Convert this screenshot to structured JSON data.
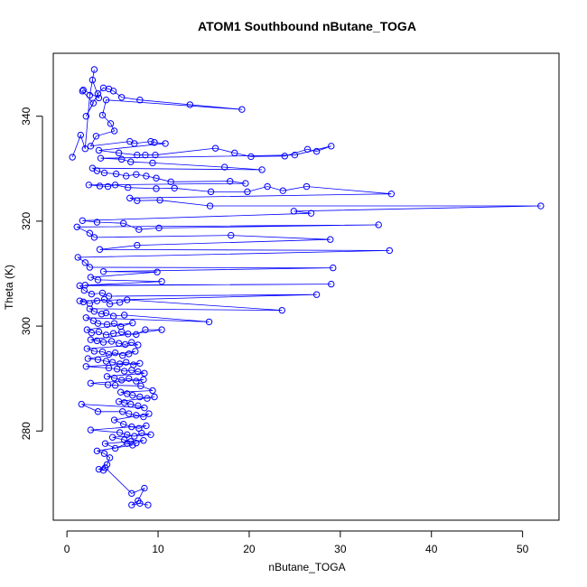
{
  "chart_data": {
    "type": "line",
    "title": "ATOM1 Southbound nButane_TOGA",
    "xlabel": "nButane_TOGA",
    "ylabel": "Theta (K)",
    "xlim": [
      -1.5,
      54.0
    ],
    "ylim": [
      263.0,
      352.0
    ],
    "x_ticks": [
      0,
      10,
      20,
      30,
      40,
      50
    ],
    "y_ticks": [
      280,
      300,
      320,
      340
    ],
    "grid": false,
    "legend": "none",
    "series": [
      {
        "color": "#0000ff",
        "marker": "open-circle",
        "points": [
          [
            0.6,
            332.2
          ],
          [
            1.5,
            336.4
          ],
          [
            2.0,
            333.8
          ],
          [
            2.5,
            344.0
          ],
          [
            3.0,
            348.9
          ],
          [
            2.8,
            346.9
          ],
          [
            3.5,
            343.5
          ],
          [
            1.8,
            345.0
          ],
          [
            1.7,
            344.8
          ],
          [
            2.9,
            342.5
          ],
          [
            2.1,
            340.0
          ],
          [
            3.4,
            344.3
          ],
          [
            4.0,
            345.4
          ],
          [
            4.6,
            345.2
          ],
          [
            5.1,
            344.8
          ],
          [
            6.0,
            343.6
          ],
          [
            8.0,
            343.1
          ],
          [
            13.5,
            342.2
          ],
          [
            19.2,
            341.3
          ],
          [
            4.3,
            343.1
          ],
          [
            3.9,
            340.2
          ],
          [
            4.8,
            338.6
          ],
          [
            5.2,
            337.2
          ],
          [
            3.2,
            336.2
          ],
          [
            2.6,
            334.3
          ],
          [
            6.9,
            335.2
          ],
          [
            7.4,
            334.8
          ],
          [
            9.2,
            335.2
          ],
          [
            9.6,
            335.0
          ],
          [
            10.8,
            334.8
          ],
          [
            3.5,
            333.5
          ],
          [
            5.7,
            333.0
          ],
          [
            7.7,
            332.6
          ],
          [
            8.6,
            332.6
          ],
          [
            9.7,
            332.6
          ],
          [
            16.3,
            333.9
          ],
          [
            18.4,
            333.0
          ],
          [
            20.2,
            332.3
          ],
          [
            23.9,
            332.4
          ],
          [
            26.4,
            333.7
          ],
          [
            27.4,
            333.3
          ],
          [
            29.0,
            334.3
          ],
          [
            25.0,
            332.6
          ],
          [
            3.7,
            332.0
          ],
          [
            6.0,
            331.8
          ],
          [
            7.0,
            331.3
          ],
          [
            9.4,
            331.1
          ],
          [
            17.3,
            330.3
          ],
          [
            21.4,
            329.8
          ],
          [
            2.8,
            330.1
          ],
          [
            3.3,
            329.6
          ],
          [
            4.1,
            329.2
          ],
          [
            5.4,
            329.0
          ],
          [
            6.5,
            328.6
          ],
          [
            7.6,
            328.9
          ],
          [
            8.7,
            328.6
          ],
          [
            9.8,
            328.2
          ],
          [
            11.4,
            327.5
          ],
          [
            17.9,
            327.6
          ],
          [
            19.6,
            327.2
          ],
          [
            2.4,
            326.9
          ],
          [
            3.6,
            326.7
          ],
          [
            4.5,
            326.6
          ],
          [
            5.3,
            326.9
          ],
          [
            6.7,
            326.4
          ],
          [
            9.8,
            326.2
          ],
          [
            11.8,
            326.3
          ],
          [
            15.8,
            325.6
          ],
          [
            19.8,
            325.6
          ],
          [
            22.0,
            326.6
          ],
          [
            23.7,
            325.8
          ],
          [
            26.3,
            326.6
          ],
          [
            35.6,
            325.2
          ],
          [
            6.9,
            324.4
          ],
          [
            7.7,
            323.9
          ],
          [
            10.2,
            324.0
          ],
          [
            15.7,
            322.9
          ],
          [
            52.0,
            322.9
          ],
          [
            24.9,
            321.9
          ],
          [
            26.8,
            321.5
          ],
          [
            1.7,
            320.1
          ],
          [
            3.3,
            319.8
          ],
          [
            6.2,
            319.6
          ],
          [
            7.9,
            318.4
          ],
          [
            10.1,
            318.7
          ],
          [
            34.2,
            319.3
          ],
          [
            1.1,
            318.9
          ],
          [
            2.5,
            317.7
          ],
          [
            3.0,
            316.9
          ],
          [
            18.0,
            317.3
          ],
          [
            28.9,
            316.5
          ],
          [
            7.7,
            315.4
          ],
          [
            3.6,
            314.6
          ],
          [
            35.4,
            314.4
          ],
          [
            1.2,
            313.1
          ],
          [
            2.0,
            312.1
          ],
          [
            2.5,
            311.2
          ],
          [
            29.2,
            311.1
          ],
          [
            4.0,
            310.4
          ],
          [
            9.9,
            310.3
          ],
          [
            2.6,
            309.3
          ],
          [
            3.4,
            308.8
          ],
          [
            10.4,
            308.5
          ],
          [
            2.0,
            307.8
          ],
          [
            29.0,
            308.0
          ],
          [
            1.4,
            307.7
          ],
          [
            1.9,
            306.8
          ],
          [
            2.7,
            306.1
          ],
          [
            3.9,
            306.3
          ],
          [
            4.6,
            305.7
          ],
          [
            27.4,
            306.0
          ],
          [
            1.4,
            304.8
          ],
          [
            1.8,
            304.6
          ],
          [
            2.5,
            304.3
          ],
          [
            3.3,
            304.8
          ],
          [
            4.1,
            305.1
          ],
          [
            4.7,
            304.2
          ],
          [
            5.8,
            304.5
          ],
          [
            6.6,
            305.0
          ],
          [
            23.6,
            303.0
          ],
          [
            2.5,
            303.3
          ],
          [
            3.0,
            302.8
          ],
          [
            3.8,
            302.3
          ],
          [
            4.3,
            302.5
          ],
          [
            5.1,
            301.9
          ],
          [
            6.3,
            302.1
          ],
          [
            15.6,
            300.8
          ],
          [
            2.1,
            301.6
          ],
          [
            2.9,
            301.0
          ],
          [
            3.4,
            300.5
          ],
          [
            4.4,
            300.3
          ],
          [
            5.2,
            300.5
          ],
          [
            5.9,
            299.9
          ],
          [
            7.2,
            300.6
          ],
          [
            2.2,
            299.3
          ],
          [
            2.7,
            298.7
          ],
          [
            3.5,
            298.9
          ],
          [
            4.3,
            298.3
          ],
          [
            5.1,
            298.6
          ],
          [
            6.0,
            298.9
          ],
          [
            6.7,
            298.5
          ],
          [
            7.6,
            298.4
          ],
          [
            8.6,
            299.3
          ],
          [
            10.4,
            299.3
          ],
          [
            2.6,
            297.4
          ],
          [
            3.3,
            297.2
          ],
          [
            4.0,
            296.9
          ],
          [
            4.9,
            297.1
          ],
          [
            5.7,
            296.7
          ],
          [
            6.4,
            296.5
          ],
          [
            7.1,
            296.9
          ],
          [
            7.8,
            296.4
          ],
          [
            2.2,
            295.7
          ],
          [
            3.0,
            295.2
          ],
          [
            3.9,
            295.1
          ],
          [
            4.6,
            294.6
          ],
          [
            5.3,
            294.9
          ],
          [
            6.1,
            294.4
          ],
          [
            6.8,
            294.7
          ],
          [
            7.5,
            295.2
          ],
          [
            2.3,
            293.8
          ],
          [
            3.4,
            293.6
          ],
          [
            4.3,
            293.3
          ],
          [
            5.0,
            293.1
          ],
          [
            5.8,
            292.8
          ],
          [
            6.5,
            293.1
          ],
          [
            7.3,
            292.6
          ],
          [
            8.0,
            292.9
          ],
          [
            2.1,
            292.3
          ],
          [
            4.6,
            292.0
          ],
          [
            5.5,
            291.8
          ],
          [
            6.3,
            291.4
          ],
          [
            7.1,
            291.6
          ],
          [
            7.8,
            291.3
          ],
          [
            8.5,
            291.0
          ],
          [
            4.4,
            290.4
          ],
          [
            5.2,
            290.1
          ],
          [
            6.0,
            289.7
          ],
          [
            6.8,
            290.0
          ],
          [
            7.6,
            289.5
          ],
          [
            8.4,
            289.8
          ],
          [
            2.6,
            289.1
          ],
          [
            4.5,
            288.8
          ],
          [
            5.3,
            288.7
          ],
          [
            8.1,
            288.6
          ],
          [
            9.4,
            287.7
          ],
          [
            5.9,
            287.4
          ],
          [
            6.6,
            287.1
          ],
          [
            7.2,
            286.8
          ],
          [
            8.0,
            286.5
          ],
          [
            8.8,
            286.2
          ],
          [
            9.6,
            286.5
          ],
          [
            5.7,
            285.6
          ],
          [
            6.3,
            285.4
          ],
          [
            7.0,
            285.1
          ],
          [
            7.8,
            284.8
          ],
          [
            8.5,
            284.4
          ],
          [
            1.6,
            285.1
          ],
          [
            3.4,
            283.7
          ],
          [
            6.1,
            283.7
          ],
          [
            6.8,
            283.3
          ],
          [
            7.6,
            283.0
          ],
          [
            8.4,
            282.7
          ],
          [
            9.0,
            283.3
          ],
          [
            5.2,
            282.1
          ],
          [
            6.2,
            281.3
          ],
          [
            7.1,
            280.8
          ],
          [
            7.9,
            280.5
          ],
          [
            8.7,
            281.0
          ],
          [
            2.6,
            280.2
          ],
          [
            5.8,
            279.7
          ],
          [
            6.6,
            279.3
          ],
          [
            7.4,
            279.0
          ],
          [
            8.2,
            279.6
          ],
          [
            9.2,
            279.3
          ],
          [
            5.0,
            278.8
          ],
          [
            6.3,
            278.3
          ],
          [
            7.0,
            278.0
          ],
          [
            7.6,
            277.7
          ],
          [
            8.4,
            278.2
          ],
          [
            4.2,
            277.6
          ],
          [
            5.3,
            276.7
          ],
          [
            6.6,
            277.6
          ],
          [
            7.2,
            277.3
          ],
          [
            3.3,
            276.2
          ],
          [
            4.1,
            275.7
          ],
          [
            4.7,
            274.9
          ],
          [
            4.4,
            273.6
          ],
          [
            3.5,
            272.7
          ],
          [
            4.0,
            272.5
          ],
          [
            4.2,
            273.0
          ],
          [
            7.1,
            268.1
          ],
          [
            8.5,
            269.1
          ],
          [
            7.8,
            266.7
          ],
          [
            7.1,
            265.9
          ],
          [
            8.0,
            266.2
          ],
          [
            8.9,
            265.9
          ]
        ]
      }
    ]
  }
}
